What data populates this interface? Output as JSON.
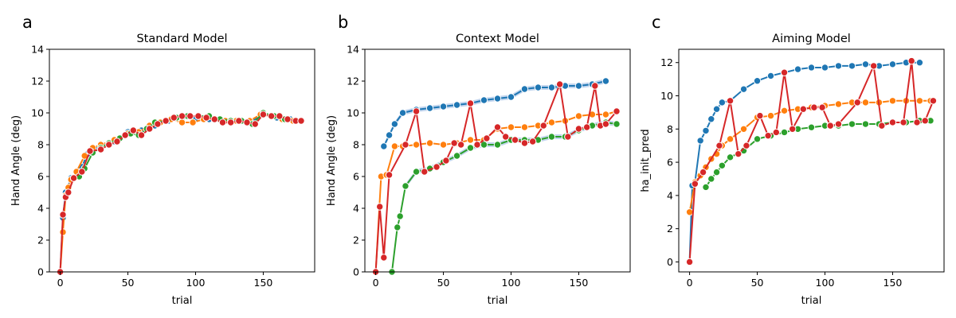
{
  "colors": {
    "blue": "#1f77b4",
    "orange": "#ff7f0e",
    "green": "#2ca02c",
    "red": "#d62728",
    "band": "#aec7e8"
  },
  "chart_data": [
    {
      "type": "line",
      "panel_letter": "a",
      "title": "Standard Model",
      "xlabel": "trial",
      "ylabel": "Hand Angle (deg)",
      "xlim": [
        -8,
        188
      ],
      "ylim": [
        0,
        14
      ],
      "xticks": [
        0,
        50,
        100,
        150
      ],
      "yticks": [
        0,
        2,
        4,
        6,
        8,
        10,
        12,
        14
      ],
      "grid": false,
      "legend": "none",
      "series": [
        {
          "color": "blue",
          "x": [
            0,
            2,
            4,
            8,
            12,
            16,
            20,
            24,
            30,
            40,
            50,
            60,
            70,
            80,
            90,
            100,
            110,
            120,
            130,
            140,
            150,
            160,
            170,
            175,
            178
          ],
          "y": [
            0,
            3.4,
            5.0,
            5.9,
            6.1,
            6.6,
            7.4,
            7.7,
            7.9,
            8.2,
            8.8,
            8.9,
            9.2,
            9.5,
            9.7,
            9.6,
            9.6,
            9.5,
            9.5,
            9.4,
            9.9,
            9.7,
            9.6,
            9.5,
            9.5
          ]
        },
        {
          "color": "orange",
          "x": [
            0,
            2,
            4,
            6,
            8,
            12,
            18,
            24,
            30,
            40,
            50,
            58,
            66,
            74,
            82,
            90,
            98,
            106,
            114,
            122,
            130,
            140,
            148,
            156,
            164,
            172,
            178
          ],
          "y": [
            0,
            2.5,
            4.8,
            5.3,
            5.8,
            6.3,
            7.3,
            7.8,
            8.0,
            8.3,
            8.7,
            8.8,
            9.2,
            9.4,
            9.6,
            9.4,
            9.4,
            9.6,
            9.6,
            9.5,
            9.5,
            9.5,
            9.9,
            9.8,
            9.6,
            9.5,
            9.5
          ]
        },
        {
          "color": "green",
          "x": [
            10,
            14,
            18,
            24,
            30,
            36,
            44,
            52,
            58,
            64,
            70,
            78,
            86,
            94,
            102,
            110,
            118,
            126,
            134,
            142,
            150,
            158,
            166,
            174,
            178
          ],
          "y": [
            5.9,
            6.0,
            6.5,
            7.5,
            7.8,
            8.1,
            8.4,
            8.7,
            8.6,
            9.0,
            9.4,
            9.5,
            9.7,
            9.8,
            9.8,
            9.8,
            9.6,
            9.5,
            9.5,
            9.3,
            10.0,
            9.8,
            9.6,
            9.5,
            9.5
          ]
        },
        {
          "color": "red",
          "x": [
            0,
            2,
            4,
            6,
            10,
            16,
            22,
            30,
            36,
            42,
            48,
            54,
            60,
            66,
            72,
            78,
            84,
            90,
            96,
            102,
            108,
            114,
            120,
            126,
            132,
            138,
            144,
            150,
            156,
            162,
            168,
            174,
            178
          ],
          "y": [
            0,
            3.6,
            4.7,
            5.0,
            5.9,
            6.3,
            7.6,
            7.7,
            8.0,
            8.2,
            8.6,
            8.9,
            8.6,
            9.0,
            9.3,
            9.5,
            9.7,
            9.8,
            9.8,
            9.8,
            9.7,
            9.6,
            9.4,
            9.4,
            9.5,
            9.4,
            9.3,
            9.9,
            9.8,
            9.8,
            9.6,
            9.5,
            9.5
          ]
        }
      ]
    },
    {
      "type": "line",
      "panel_letter": "b",
      "title": "Context Model",
      "xlabel": "trial",
      "ylabel": "Hand Angle (deg)",
      "xlim": [
        -8,
        188
      ],
      "ylim": [
        0,
        14
      ],
      "xticks": [
        0,
        50,
        100,
        150
      ],
      "yticks": [
        0,
        2,
        4,
        6,
        8,
        10,
        12,
        14
      ],
      "grid": false,
      "legend": "none",
      "series": [
        {
          "color": "blue",
          "band": true,
          "x": [
            6,
            10,
            14,
            20,
            30,
            40,
            50,
            60,
            70,
            80,
            90,
            100,
            110,
            120,
            130,
            140,
            150,
            160,
            170
          ],
          "y": [
            7.9,
            8.6,
            9.3,
            10.0,
            10.2,
            10.3,
            10.4,
            10.5,
            10.6,
            10.8,
            10.9,
            11.0,
            11.5,
            11.6,
            11.6,
            11.7,
            11.7,
            11.8,
            12.0
          ]
        },
        {
          "color": "orange",
          "x": [
            0,
            4,
            8,
            14,
            20,
            30,
            40,
            50,
            60,
            70,
            80,
            90,
            100,
            110,
            120,
            130,
            140,
            150,
            160,
            170,
            178
          ],
          "y": [
            0,
            6.0,
            6.1,
            7.9,
            7.9,
            8.0,
            8.1,
            8.0,
            8.1,
            8.3,
            8.3,
            9.0,
            9.1,
            9.1,
            9.2,
            9.4,
            9.5,
            9.8,
            9.9,
            9.9,
            10.1
          ]
        },
        {
          "color": "green",
          "band": true,
          "x": [
            12,
            16,
            18,
            22,
            30,
            40,
            50,
            60,
            70,
            80,
            90,
            100,
            110,
            120,
            130,
            140,
            150,
            160,
            170,
            178
          ],
          "y": [
            0,
            2.8,
            3.5,
            5.4,
            6.3,
            6.5,
            6.9,
            7.3,
            7.8,
            8.0,
            8.0,
            8.3,
            8.3,
            8.3,
            8.5,
            8.5,
            8.9,
            9.2,
            9.4,
            9.3
          ]
        },
        {
          "color": "red",
          "x": [
            0,
            3,
            6,
            10,
            22,
            30,
            36,
            45,
            52,
            58,
            63,
            70,
            75,
            82,
            90,
            96,
            103,
            110,
            116,
            124,
            136,
            142,
            150,
            156,
            162,
            166,
            170,
            178
          ],
          "y": [
            0,
            4.1,
            0.9,
            6.1,
            8.0,
            10.1,
            6.3,
            6.6,
            7.0,
            8.1,
            8.0,
            10.6,
            8.0,
            8.4,
            9.1,
            8.5,
            8.3,
            8.1,
            8.2,
            9.2,
            11.8,
            8.5,
            9.0,
            9.1,
            11.7,
            9.2,
            9.3,
            10.1
          ]
        }
      ]
    },
    {
      "type": "line",
      "panel_letter": "c",
      "title": "Aiming Model",
      "xlabel": "trial",
      "ylabel": "ha_init_pred",
      "xlim": [
        -8,
        188
      ],
      "ylim": [
        -0.6,
        12.8
      ],
      "xticks": [
        0,
        50,
        100,
        150
      ],
      "yticks": [
        0,
        2,
        4,
        6,
        8,
        10,
        12
      ],
      "grid": false,
      "legend": "none",
      "series": [
        {
          "color": "blue",
          "x": [
            0,
            2,
            4,
            8,
            12,
            16,
            20,
            24,
            30,
            40,
            50,
            60,
            70,
            80,
            90,
            100,
            110,
            120,
            130,
            140,
            150,
            160,
            170
          ],
          "y": [
            0,
            4.6,
            4.8,
            7.3,
            7.9,
            8.6,
            9.2,
            9.6,
            9.7,
            10.4,
            10.9,
            11.2,
            11.4,
            11.6,
            11.7,
            11.7,
            11.8,
            11.8,
            11.9,
            11.8,
            11.9,
            12.0,
            12.0
          ]
        },
        {
          "color": "orange",
          "x": [
            0,
            4,
            8,
            12,
            16,
            20,
            24,
            30,
            40,
            50,
            60,
            70,
            80,
            90,
            100,
            110,
            120,
            130,
            140,
            150,
            160,
            170,
            178
          ],
          "y": [
            3.0,
            4.8,
            5.2,
            5.7,
            6.2,
            6.5,
            7.0,
            7.4,
            8.0,
            8.7,
            8.8,
            9.1,
            9.2,
            9.3,
            9.4,
            9.5,
            9.6,
            9.6,
            9.6,
            9.7,
            9.7,
            9.7,
            9.7
          ]
        },
        {
          "color": "green",
          "x": [
            12,
            16,
            20,
            24,
            30,
            40,
            50,
            60,
            70,
            80,
            90,
            100,
            110,
            120,
            130,
            140,
            150,
            160,
            170,
            178
          ],
          "y": [
            4.5,
            5.0,
            5.4,
            5.8,
            6.3,
            6.7,
            7.4,
            7.6,
            7.8,
            8.0,
            8.1,
            8.2,
            8.2,
            8.3,
            8.3,
            8.3,
            8.4,
            8.4,
            8.5,
            8.5
          ]
        },
        {
          "color": "red",
          "x": [
            0,
            4,
            10,
            22,
            30,
            36,
            42,
            52,
            58,
            64,
            70,
            76,
            84,
            92,
            98,
            104,
            110,
            124,
            136,
            142,
            150,
            158,
            164,
            168,
            174,
            180
          ],
          "y": [
            0,
            4.7,
            5.4,
            7.0,
            9.7,
            6.5,
            7.0,
            8.8,
            7.6,
            7.8,
            11.4,
            8.0,
            9.2,
            9.3,
            9.3,
            8.2,
            8.3,
            9.6,
            11.8,
            8.2,
            8.4,
            8.4,
            12.1,
            8.4,
            8.5,
            9.7
          ]
        }
      ]
    }
  ]
}
